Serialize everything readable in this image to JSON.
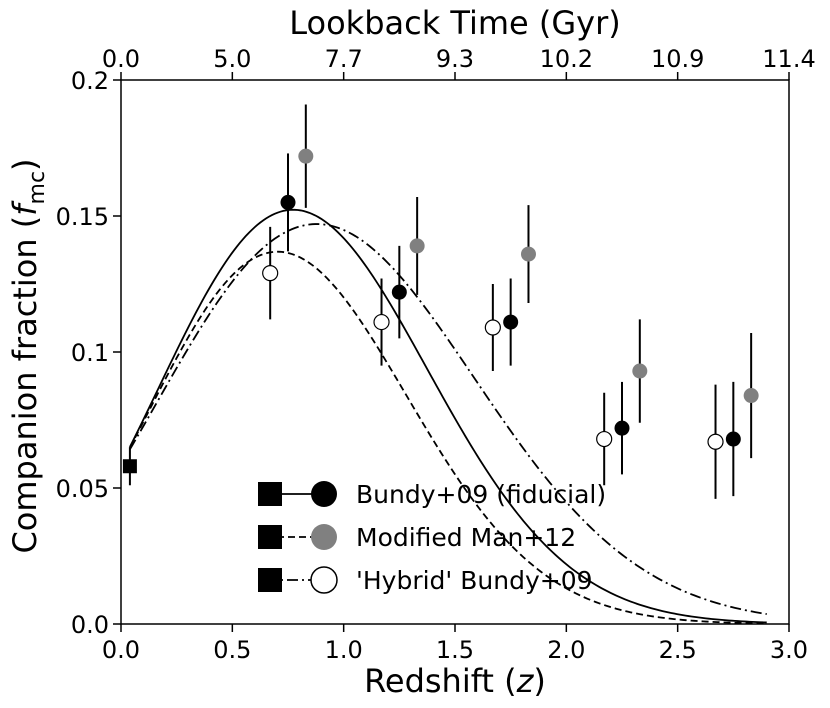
{
  "chart_data": {
    "type": "line",
    "title": "",
    "xlabel": "Redshift (z)",
    "xlabel_main": "Redshift (",
    "xlabel_var": "z",
    "xlabel_close": ")",
    "ylabel_main": "Companion fraction (",
    "ylabel_var": "f",
    "ylabel_sub": "mc",
    "ylabel_close": ")",
    "top_xlabel": "Lookback Time (Gyr)",
    "xlim": [
      0,
      3.0
    ],
    "ylim": [
      0,
      0.2
    ],
    "x_ticks": [
      {
        "value": 0,
        "label": "0.0"
      },
      {
        "value": 0.5,
        "label": "0.5"
      },
      {
        "value": 1.0,
        "label": "1.0"
      },
      {
        "value": 1.5,
        "label": "1.5"
      },
      {
        "value": 2.0,
        "label": "2.0"
      },
      {
        "value": 2.5,
        "label": "2.5"
      },
      {
        "value": 3.0,
        "label": "3.0"
      }
    ],
    "y_ticks": [
      {
        "value": 0,
        "label": "0.0"
      },
      {
        "value": 0.05,
        "label": "0.05"
      },
      {
        "value": 0.1,
        "label": "0.1"
      },
      {
        "value": 0.15,
        "label": "0.15"
      },
      {
        "value": 0.2,
        "label": "0.2"
      }
    ],
    "top_ticks": [
      {
        "value": 0,
        "label": "0.0"
      },
      {
        "value": 0.5,
        "label": "5.0"
      },
      {
        "value": 1.0,
        "label": "7.7"
      },
      {
        "value": 1.5,
        "label": "9.3"
      },
      {
        "value": 2.0,
        "label": "10.2"
      },
      {
        "value": 2.5,
        "label": "10.9"
      },
      {
        "value": 3.0,
        "label": "11.4"
      }
    ],
    "series": [
      {
        "name": "Bundy+09 (fiducial)",
        "marker": "filled-black",
        "line_style": "solid",
        "points": [
          {
            "x": 0.75,
            "y": 0.155,
            "err": 0.018
          },
          {
            "x": 1.25,
            "y": 0.122,
            "err": 0.017
          },
          {
            "x": 1.75,
            "y": 0.111,
            "err": 0.016
          },
          {
            "x": 2.25,
            "y": 0.072,
            "err": 0.017
          },
          {
            "x": 2.75,
            "y": 0.068,
            "err": 0.021
          }
        ],
        "curve": {
          "a": 0.0588,
          "b": 2.0,
          "m": 2.6
        }
      },
      {
        "name": "Modified Man+12",
        "marker": "filled-gray",
        "line_style": "dashed",
        "points": [
          {
            "x": 0.83,
            "y": 0.172,
            "err": 0.019
          },
          {
            "x": 1.33,
            "y": 0.139,
            "err": 0.018
          },
          {
            "x": 1.83,
            "y": 0.136,
            "err": 0.018
          },
          {
            "x": 2.33,
            "y": 0.093,
            "err": 0.019
          },
          {
            "x": 2.83,
            "y": 0.084,
            "err": 0.023
          }
        ],
        "curve": {
          "a": 0.0588,
          "b": 2.3,
          "m": 2.5
        }
      },
      {
        "name": "'Hybrid' Bundy+09",
        "marker": "open-circle",
        "line_style": "dashdot",
        "points": [
          {
            "x": 0.67,
            "y": 0.129,
            "err": 0.017
          },
          {
            "x": 1.17,
            "y": 0.111,
            "err": 0.016
          },
          {
            "x": 1.67,
            "y": 0.109,
            "err": 0.016
          },
          {
            "x": 2.17,
            "y": 0.068,
            "err": 0.017
          },
          {
            "x": 2.67,
            "y": 0.067,
            "err": 0.021
          }
        ],
        "curve": {
          "a": 0.0588,
          "b": 1.65,
          "m": 2.25
        }
      }
    ],
    "anchor_point": {
      "x": 0.04,
      "y": 0.058,
      "err": 0.007,
      "marker": "square"
    },
    "legend_position": "bottom-right"
  }
}
